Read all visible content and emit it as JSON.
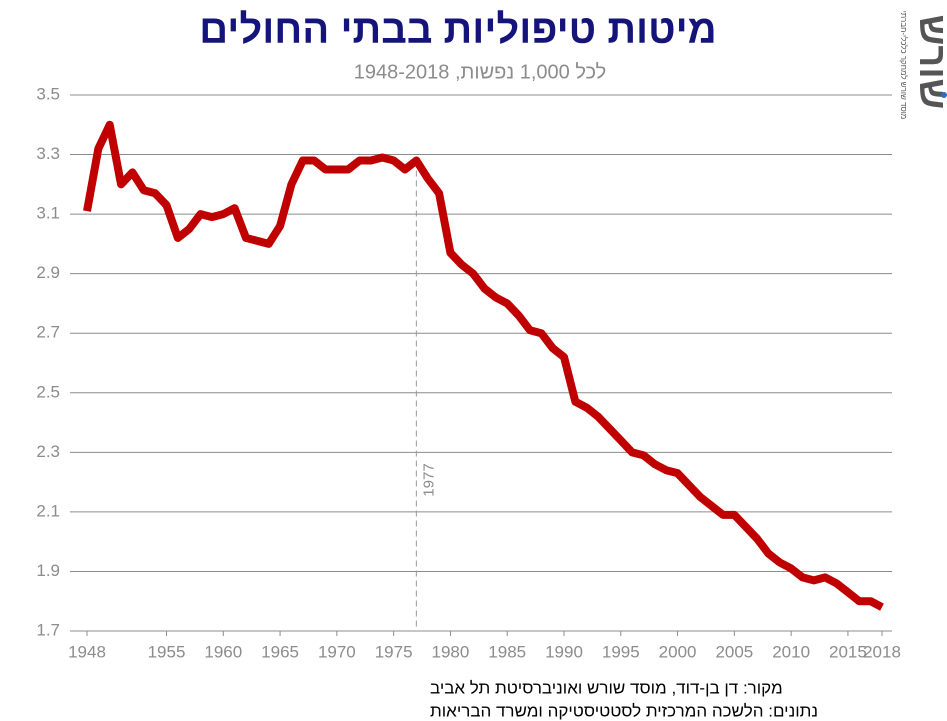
{
  "chart_data": {
    "type": "line",
    "title": "מיטות טיפוליות בבתי החולים",
    "subtitle": "לכל 1,000 נפשות, 1948-2018",
    "x": [
      1948,
      1949,
      1950,
      1951,
      1952,
      1953,
      1954,
      1955,
      1956,
      1957,
      1958,
      1959,
      1960,
      1961,
      1962,
      1963,
      1964,
      1965,
      1966,
      1967,
      1968,
      1969,
      1970,
      1971,
      1972,
      1973,
      1974,
      1975,
      1976,
      1977,
      1978,
      1979,
      1980,
      1981,
      1982,
      1983,
      1984,
      1985,
      1986,
      1987,
      1988,
      1989,
      1990,
      1991,
      1992,
      1993,
      1994,
      1995,
      1996,
      1997,
      1998,
      1999,
      2000,
      2001,
      2002,
      2003,
      2004,
      2005,
      2006,
      2007,
      2008,
      2009,
      2010,
      2011,
      2012,
      2013,
      2014,
      2015,
      2016,
      2017,
      2018
    ],
    "series": [
      {
        "name": "מיטות טיפוליות",
        "color": "#c00000",
        "values": [
          3.11,
          3.32,
          3.4,
          3.2,
          3.24,
          3.18,
          3.17,
          3.13,
          3.02,
          3.05,
          3.1,
          3.09,
          3.1,
          3.12,
          3.02,
          3.01,
          3.0,
          3.06,
          3.2,
          3.28,
          3.28,
          3.25,
          3.25,
          3.25,
          3.28,
          3.28,
          3.29,
          3.28,
          3.25,
          3.28,
          3.22,
          3.17,
          2.97,
          2.93,
          2.9,
          2.85,
          2.82,
          2.8,
          2.76,
          2.71,
          2.7,
          2.65,
          2.62,
          2.47,
          2.45,
          2.42,
          2.38,
          2.34,
          2.3,
          2.29,
          2.26,
          2.24,
          2.23,
          2.19,
          2.15,
          2.12,
          2.09,
          2.09,
          2.05,
          2.01,
          1.96,
          1.93,
          1.91,
          1.88,
          1.87,
          1.88,
          1.86,
          1.83,
          1.8,
          1.8,
          1.78
        ]
      }
    ],
    "xlim": [
      1948,
      2018
    ],
    "xticks": [
      1948,
      1955,
      1960,
      1965,
      1970,
      1975,
      1980,
      1985,
      1990,
      1995,
      2000,
      2005,
      2010,
      2015,
      2018
    ],
    "ylim": [
      1.7,
      3.5
    ],
    "yticks": [
      1.7,
      1.9,
      2.1,
      2.3,
      2.5,
      2.7,
      2.9,
      3.1,
      3.3,
      3.5
    ],
    "grid": true,
    "annotation": {
      "value": 1977,
      "label": "1977"
    },
    "source": "מקור:  דן בן-דוד, מוסד שורש ואוניברסיטת תל אביב",
    "data_source": "נתונים:  הלשכה המרכזית לסטטיסטיקה ומשרד הבריאות",
    "logo": "שורש",
    "logo_caption": "מוסד שורש למחקר כלכלי-חברתי"
  }
}
